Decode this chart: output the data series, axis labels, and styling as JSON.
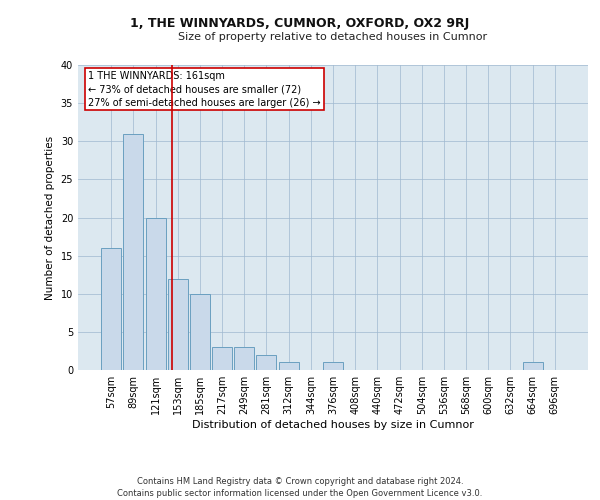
{
  "title": "1, THE WINNYARDS, CUMNOR, OXFORD, OX2 9RJ",
  "subtitle": "Size of property relative to detached houses in Cumnor",
  "xlabel": "Distribution of detached houses by size in Cumnor",
  "ylabel": "Number of detached properties",
  "footer_line1": "Contains HM Land Registry data © Crown copyright and database right 2024.",
  "footer_line2": "Contains public sector information licensed under the Open Government Licence v3.0.",
  "bar_labels": [
    "57sqm",
    "89sqm",
    "121sqm",
    "153sqm",
    "185sqm",
    "217sqm",
    "249sqm",
    "281sqm",
    "312sqm",
    "344sqm",
    "376sqm",
    "408sqm",
    "440sqm",
    "472sqm",
    "504sqm",
    "536sqm",
    "568sqm",
    "600sqm",
    "632sqm",
    "664sqm",
    "696sqm"
  ],
  "bar_values": [
    16,
    31,
    20,
    12,
    10,
    3,
    3,
    2,
    1,
    0,
    1,
    0,
    0,
    0,
    0,
    0,
    0,
    0,
    0,
    1,
    0
  ],
  "bar_color": "#c9d9ea",
  "bar_edge_color": "#6a9fc0",
  "grid_color": "#9fb8d0",
  "background_color": "#dce8f0",
  "property_line_x": 2.73,
  "annotation_line1": "1 THE WINNYARDS: 161sqm",
  "annotation_line2": "← 73% of detached houses are smaller (72)",
  "annotation_line3": "27% of semi-detached houses are larger (26) →",
  "annotation_box_color": "#ffffff",
  "annotation_border_color": "#cc0000",
  "vline_color": "#cc0000",
  "ylim": [
    0,
    40
  ],
  "yticks": [
    0,
    5,
    10,
    15,
    20,
    25,
    30,
    35,
    40
  ],
  "title_fontsize": 9,
  "subtitle_fontsize": 8,
  "ylabel_fontsize": 7.5,
  "xlabel_fontsize": 8,
  "tick_fontsize": 7,
  "annotation_fontsize": 7,
  "footer_fontsize": 6
}
